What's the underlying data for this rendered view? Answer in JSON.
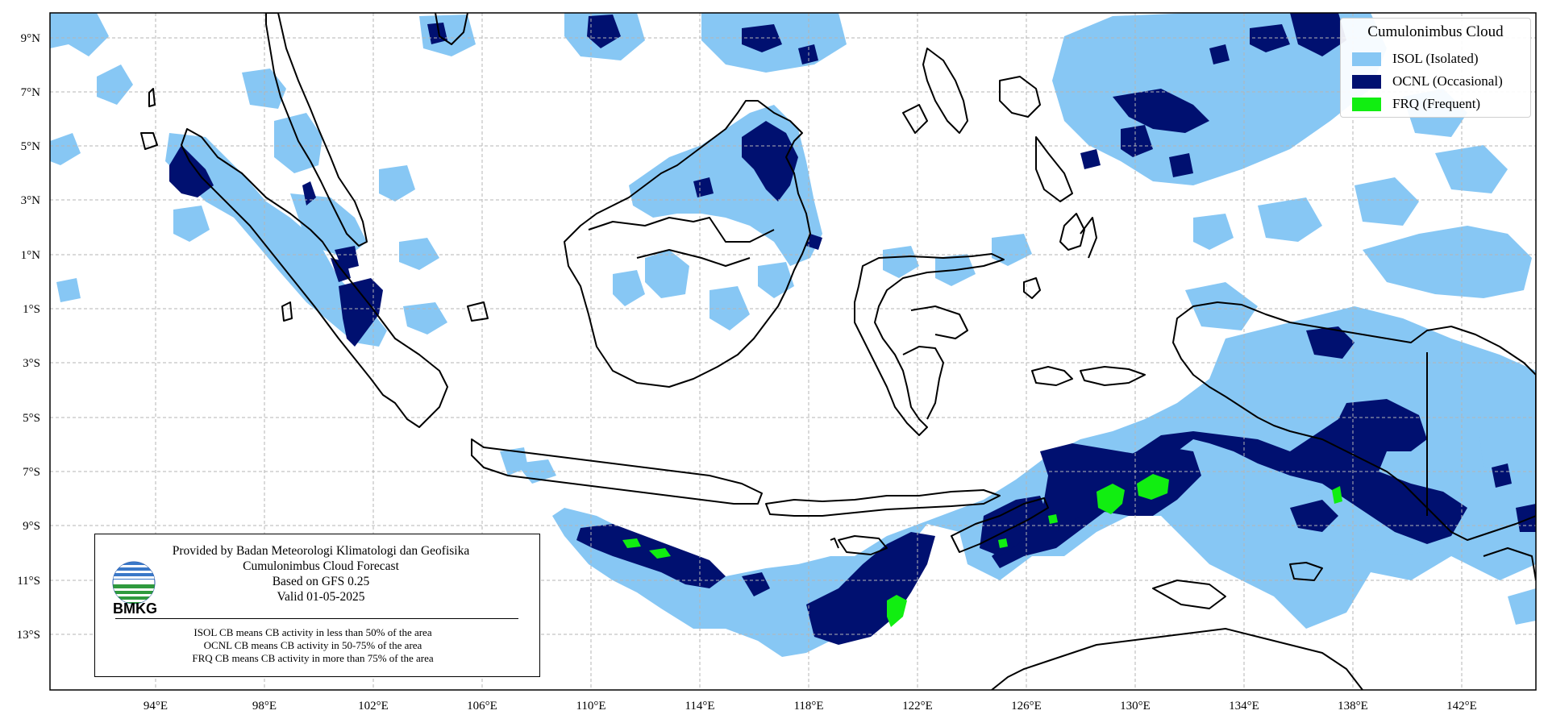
{
  "legend": {
    "title": "Cumulonimbus Cloud",
    "items": [
      {
        "key": "isol",
        "label": "ISOL (Isolated)",
        "color": "#87c7f4"
      },
      {
        "key": "ocnl",
        "label": "OCNL (Occasional)",
        "color": "#001070"
      },
      {
        "key": "frq",
        "label": "FRQ (Frequent)",
        "color": "#11ee11"
      }
    ]
  },
  "info": {
    "lines": [
      "Provided by Badan Meteorologi Klimatologi dan Geofisika",
      "Cumulonimbus Cloud Forecast",
      "Based on GFS 0.25",
      "Valid 01-05-2025"
    ],
    "notes": [
      "ISOL CB means CB activity in less than 50% of the area",
      "OCNL CB means CB activity in 50-75% of the area",
      "FRQ CB means CB activity in more than 75% of the area"
    ],
    "logo_text": "BMKG"
  },
  "axes": {
    "lat_labels": [
      "9°N",
      "7°N",
      "5°N",
      "3°N",
      "1°N",
      "1°S",
      "3°S",
      "5°S",
      "7°S",
      "9°S",
      "11°S",
      "13°S"
    ],
    "lon_labels": [
      "94°E",
      "98°E",
      "102°E",
      "106°E",
      "110°E",
      "114°E",
      "118°E",
      "122°E",
      "126°E",
      "130°E",
      "134°E",
      "138°E",
      "142°E"
    ]
  },
  "colors": {
    "isol": "#87c7f4",
    "ocnl": "#001070",
    "frq": "#11ee11",
    "grid": "#b5b5b5",
    "coast": "#000000"
  }
}
